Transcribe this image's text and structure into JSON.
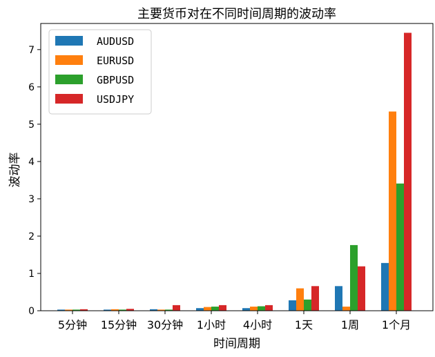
{
  "chart_data": {
    "type": "bar",
    "title": "主要货币对在不同时间周期的波动率",
    "xlabel": "时间周期",
    "ylabel": "波动率",
    "categories": [
      "5分钟",
      "15分钟",
      "30分钟",
      "1小时",
      "4小时",
      "1天",
      "1周",
      "1个月"
    ],
    "ylim": [
      0,
      7.7
    ],
    "yticks": [
      0,
      1,
      2,
      3,
      4,
      5,
      6,
      7
    ],
    "grid": false,
    "legend_position": "top-left",
    "series": [
      {
        "name": "AUDUSD",
        "color": "#1f77b4",
        "values": [
          0.03,
          0.03,
          0.04,
          0.07,
          0.07,
          0.28,
          0.66,
          1.28
        ]
      },
      {
        "name": "EURUSD",
        "color": "#ff7f0e",
        "values": [
          0.03,
          0.04,
          0.03,
          0.1,
          0.11,
          0.6,
          0.11,
          5.34
        ]
      },
      {
        "name": "GBPUSD",
        "color": "#2ca02c",
        "values": [
          0.03,
          0.03,
          0.03,
          0.11,
          0.12,
          0.3,
          1.76,
          3.41
        ]
      },
      {
        "name": "USDJPY",
        "color": "#d62728",
        "values": [
          0.04,
          0.05,
          0.15,
          0.15,
          0.15,
          0.66,
          1.19,
          7.45
        ]
      }
    ]
  }
}
